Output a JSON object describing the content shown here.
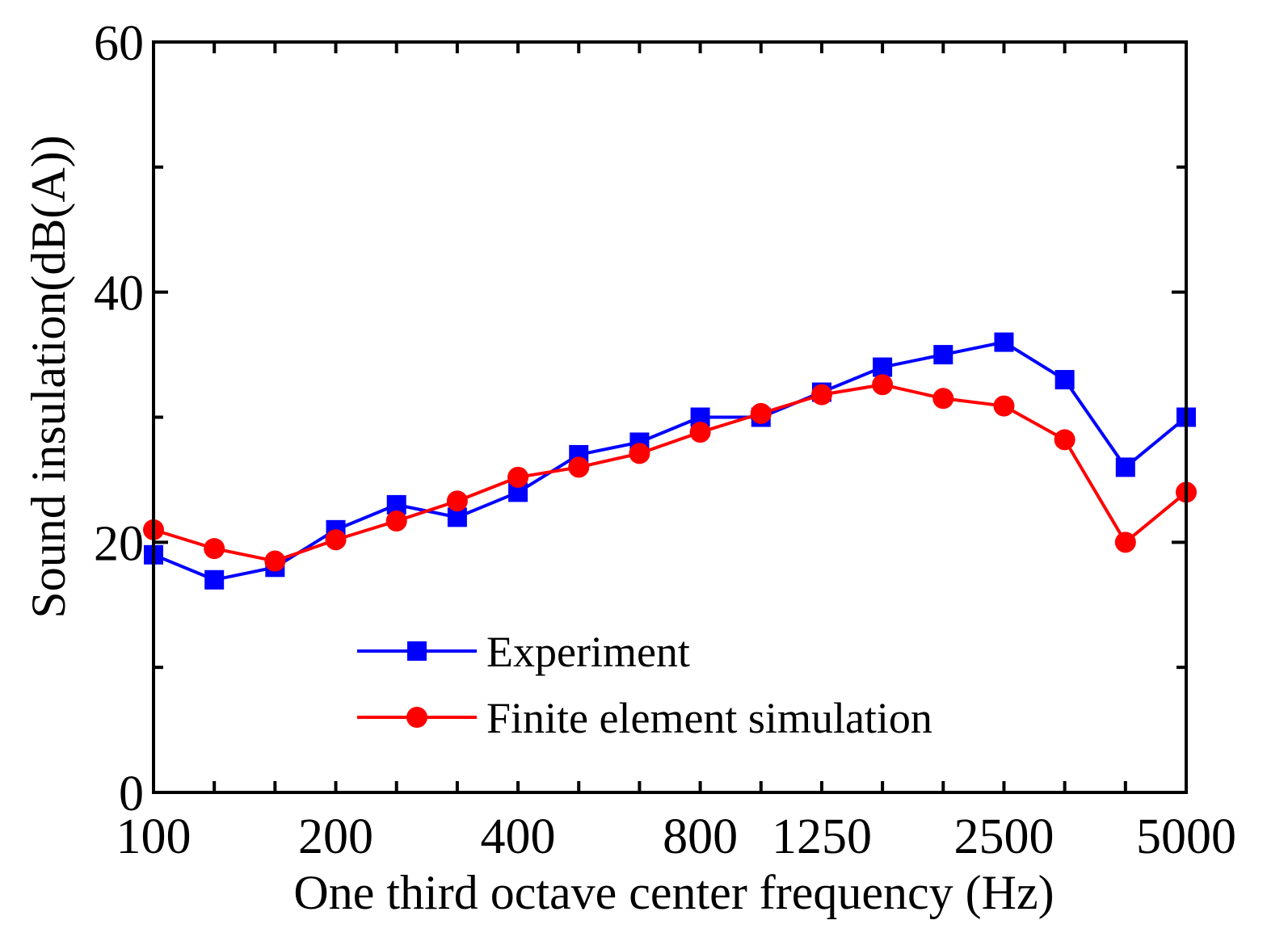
{
  "chart_data": {
    "type": "line",
    "xlabel": "One third octave center frequency (Hz)",
    "ylabel": "Sound insulation(dB(A))",
    "ylim": [
      0,
      60
    ],
    "yticks": [
      "0",
      "20",
      "40",
      "60"
    ],
    "categories": [
      "100",
      "125",
      "160",
      "200",
      "250",
      "315",
      "400",
      "500",
      "630",
      "800",
      "1000",
      "1250",
      "1600",
      "2000",
      "2500",
      "3150",
      "4000",
      "5000"
    ],
    "xtick_labels": [
      {
        "index": 0,
        "label": "100"
      },
      {
        "index": 3,
        "label": "200"
      },
      {
        "index": 6,
        "label": "400"
      },
      {
        "index": 9,
        "label": "800"
      },
      {
        "index": 11,
        "label": "1250"
      },
      {
        "index": 14,
        "label": "2500"
      },
      {
        "index": 17,
        "label": "5000"
      }
    ],
    "series": [
      {
        "name": "Experiment",
        "color": "#0000ff",
        "marker": "square",
        "values": [
          19,
          17,
          18,
          21,
          23,
          22,
          24,
          27,
          28,
          30,
          30,
          32,
          34,
          35,
          36,
          33,
          26,
          30
        ]
      },
      {
        "name": "Finite element simulation",
        "color": "#ff0000",
        "marker": "circle",
        "values": [
          21,
          19.5,
          18.5,
          20.2,
          21.7,
          23.3,
          25.2,
          26,
          27.1,
          28.8,
          30.3,
          31.8,
          32.6,
          31.5,
          30.9,
          28.2,
          20,
          24
        ]
      }
    ],
    "legend_position": "lower-center"
  }
}
